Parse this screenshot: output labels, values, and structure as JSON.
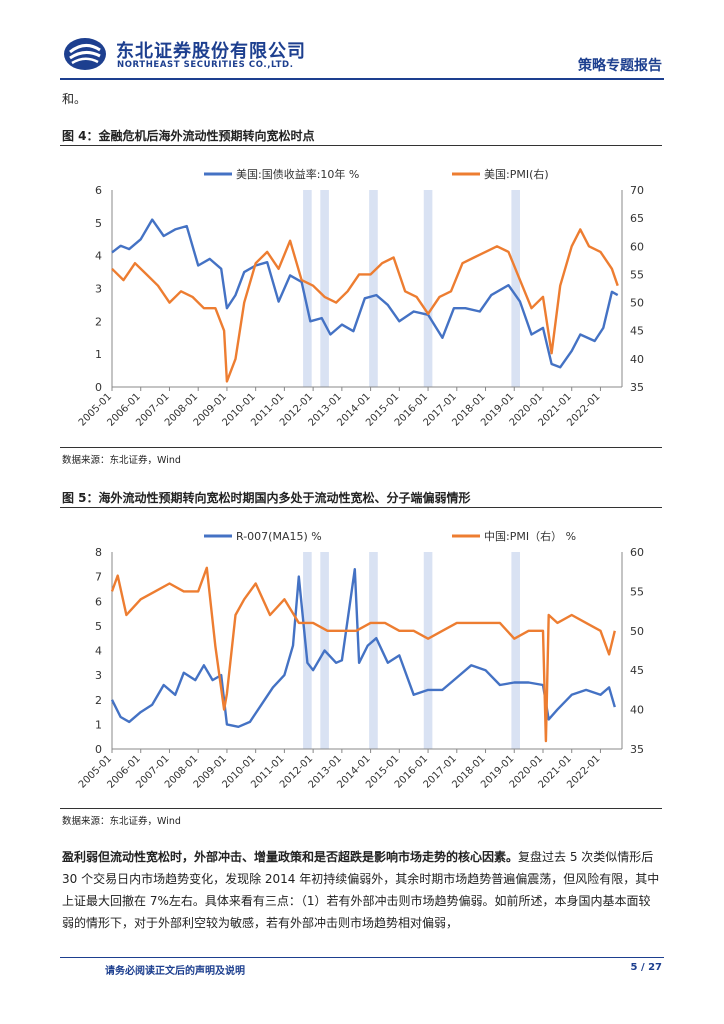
{
  "header": {
    "company_cn": "东北证券股份有限公司",
    "company_en": "NORTHEAST SECURITIES CO.,LTD.",
    "report_type": "策略专题报告"
  },
  "top_fragment": "和。",
  "figures": [
    {
      "title": "图 4：金融危机后海外流动性预期转向宽松时点",
      "source": "数据来源：东北证券，Wind",
      "legend": [
        "美国:国债收益率:10年 %",
        "美国:PMI(右)"
      ]
    },
    {
      "title": "图 5：海外流动性预期转向宽松时期国内多处于流动性宽松、分子端偏弱情形",
      "source": "数据来源：东北证券，Wind",
      "legend": [
        "R-007(MA15) %",
        "中国:PMI（右） %"
      ]
    }
  ],
  "body": {
    "bold_lead": "盈利弱但流动性宽松时，外部冲击、增量政策和是否超跌是影响市场走势的核心因素。",
    "text": "复盘过去 5 次类似情形后 30 个交易日内市场趋势变化，发现除 2014 年初持续偏弱外，其余时期市场趋势普遍偏震荡，但风险有限，其中上证最大回撤在 7%左右。具体来看有三点：（1）若有外部冲击则市场趋势偏弱。如前所述，本身国内基本面较弱的情形下，对于外部利空较为敏感，若有外部冲击则市场趋势相对偏弱，"
  },
  "footer": {
    "disclaimer": "请务必阅读正文后的声明及说明",
    "page": "5 / 27"
  },
  "chart_data": [
    {
      "type": "line",
      "title": "",
      "x_ticks": [
        "2005-01",
        "2006-01",
        "2007-01",
        "2008-01",
        "2009-01",
        "2010-01",
        "2011-01",
        "2012-01",
        "2013-01",
        "2014-01",
        "2015-01",
        "2016-01",
        "2017-01",
        "2018-01",
        "2019-01",
        "2020-01",
        "2021-01",
        "2022-01"
      ],
      "ylim_left": [
        0,
        6
      ],
      "yticks_left": [
        0,
        1,
        2,
        3,
        4,
        5,
        6
      ],
      "ylim_right": [
        35,
        70
      ],
      "yticks_right": [
        35,
        40,
        45,
        50,
        55,
        60,
        65,
        70
      ],
      "colors": {
        "left": "#4472c4",
        "right": "#ed7d31",
        "shade": "#d9e2f3"
      },
      "shaded_periods": [
        [
          2011.65,
          2011.95
        ],
        [
          2012.25,
          2012.55
        ],
        [
          2013.95,
          2014.25
        ],
        [
          2015.85,
          2016.15
        ],
        [
          2018.9,
          2019.2
        ]
      ],
      "series": [
        {
          "name": "美国:国债收益率:10年 %",
          "axis": "left",
          "x": [
            2005.0,
            2005.3,
            2005.6,
            2006.0,
            2006.4,
            2006.8,
            2007.2,
            2007.6,
            2008.0,
            2008.4,
            2008.8,
            2009.0,
            2009.3,
            2009.6,
            2010.0,
            2010.4,
            2010.8,
            2011.2,
            2011.6,
            2011.9,
            2012.3,
            2012.6,
            2013.0,
            2013.4,
            2013.8,
            2014.2,
            2014.6,
            2015.0,
            2015.5,
            2016.0,
            2016.5,
            2016.9,
            2017.3,
            2017.8,
            2018.2,
            2018.8,
            2019.2,
            2019.6,
            2020.0,
            2020.3,
            2020.6,
            2021.0,
            2021.3,
            2021.8,
            2022.1,
            2022.4,
            2022.6
          ],
          "y": [
            4.1,
            4.3,
            4.2,
            4.5,
            5.1,
            4.6,
            4.8,
            4.9,
            3.7,
            3.9,
            3.6,
            2.4,
            2.8,
            3.5,
            3.7,
            3.8,
            2.6,
            3.4,
            3.2,
            2.0,
            2.1,
            1.6,
            1.9,
            1.7,
            2.7,
            2.8,
            2.5,
            2.0,
            2.3,
            2.2,
            1.5,
            2.4,
            2.4,
            2.3,
            2.8,
            3.1,
            2.6,
            1.6,
            1.8,
            0.7,
            0.6,
            1.1,
            1.6,
            1.4,
            1.8,
            2.9,
            2.8
          ]
        },
        {
          "name": "美国:PMI(右)",
          "axis": "right",
          "x": [
            2005.0,
            2005.4,
            2005.8,
            2006.2,
            2006.6,
            2007.0,
            2007.4,
            2007.8,
            2008.2,
            2008.6,
            2008.9,
            2009.0,
            2009.3,
            2009.6,
            2010.0,
            2010.4,
            2010.8,
            2011.2,
            2011.6,
            2012.0,
            2012.4,
            2012.8,
            2013.2,
            2013.6,
            2014.0,
            2014.4,
            2014.8,
            2015.2,
            2015.6,
            2016.0,
            2016.4,
            2016.8,
            2017.2,
            2017.6,
            2018.0,
            2018.4,
            2018.8,
            2019.2,
            2019.6,
            2020.0,
            2020.3,
            2020.6,
            2021.0,
            2021.3,
            2021.6,
            2022.0,
            2022.4,
            2022.6
          ],
          "y": [
            56,
            54,
            57,
            55,
            53,
            50,
            52,
            51,
            49,
            49,
            45,
            36,
            40,
            50,
            57,
            59,
            56,
            61,
            54,
            53,
            51,
            50,
            52,
            55,
            55,
            57,
            58,
            52,
            51,
            48,
            51,
            52,
            57,
            58,
            59,
            60,
            59,
            54,
            49,
            51,
            41,
            53,
            60,
            63,
            60,
            59,
            56,
            53
          ]
        }
      ]
    },
    {
      "type": "line",
      "title": "",
      "x_ticks": [
        "2005-01",
        "2006-01",
        "2007-01",
        "2008-01",
        "2009-01",
        "2010-01",
        "2011-01",
        "2012-01",
        "2013-01",
        "2014-01",
        "2015-01",
        "2016-01",
        "2017-01",
        "2018-01",
        "2019-01",
        "2020-01",
        "2021-01",
        "2022-01"
      ],
      "ylim_left": [
        0,
        8
      ],
      "yticks_left": [
        0,
        1,
        2,
        3,
        4,
        5,
        6,
        7,
        8
      ],
      "ylim_right": [
        35,
        60
      ],
      "yticks_right": [
        35,
        40,
        45,
        50,
        55,
        60
      ],
      "colors": {
        "left": "#4472c4",
        "right": "#ed7d31",
        "shade": "#d9e2f3"
      },
      "shaded_periods": [
        [
          2011.65,
          2011.95
        ],
        [
          2012.25,
          2012.55
        ],
        [
          2013.95,
          2014.25
        ],
        [
          2015.85,
          2016.15
        ],
        [
          2018.9,
          2019.2
        ]
      ],
      "series": [
        {
          "name": "R-007(MA15) %",
          "axis": "left",
          "x": [
            2005.0,
            2005.3,
            2005.6,
            2006.0,
            2006.4,
            2006.8,
            2007.2,
            2007.5,
            2007.9,
            2008.2,
            2008.5,
            2008.8,
            2009.0,
            2009.4,
            2009.8,
            2010.2,
            2010.6,
            2011.0,
            2011.3,
            2011.5,
            2011.8,
            2012.0,
            2012.4,
            2012.8,
            2013.0,
            2013.45,
            2013.6,
            2013.9,
            2014.2,
            2014.6,
            2015.0,
            2015.5,
            2016.0,
            2016.5,
            2017.0,
            2017.5,
            2018.0,
            2018.5,
            2019.0,
            2019.5,
            2020.0,
            2020.2,
            2020.5,
            2021.0,
            2021.5,
            2022.0,
            2022.3,
            2022.5
          ],
          "y": [
            2.0,
            1.3,
            1.1,
            1.5,
            1.8,
            2.6,
            2.2,
            3.1,
            2.8,
            3.4,
            2.8,
            3.0,
            1.0,
            0.9,
            1.1,
            1.8,
            2.5,
            3.0,
            4.2,
            7.0,
            3.5,
            3.2,
            4.0,
            3.5,
            3.6,
            7.3,
            3.5,
            4.2,
            4.5,
            3.5,
            3.8,
            2.2,
            2.4,
            2.4,
            2.9,
            3.4,
            3.2,
            2.6,
            2.7,
            2.7,
            2.6,
            1.2,
            1.6,
            2.2,
            2.4,
            2.2,
            2.5,
            1.7
          ]
        },
        {
          "name": "中国:PMI（右） %",
          "axis": "right",
          "x": [
            2005.0,
            2005.2,
            2005.5,
            2006.0,
            2006.5,
            2007.0,
            2007.5,
            2008.0,
            2008.3,
            2008.6,
            2008.9,
            2009.0,
            2009.3,
            2009.6,
            2010.0,
            2010.5,
            2011.0,
            2011.5,
            2012.0,
            2012.5,
            2013.0,
            2013.5,
            2014.0,
            2014.5,
            2015.0,
            2015.5,
            2016.0,
            2016.5,
            2017.0,
            2017.5,
            2018.0,
            2018.5,
            2019.0,
            2019.5,
            2020.0,
            2020.1,
            2020.2,
            2020.5,
            2021.0,
            2021.5,
            2022.0,
            2022.3,
            2022.5
          ],
          "y": [
            55,
            57,
            52,
            54,
            55,
            56,
            55,
            55,
            58,
            48,
            40,
            42,
            52,
            54,
            56,
            52,
            54,
            51,
            51,
            50,
            50,
            50,
            51,
            51,
            50,
            50,
            49,
            50,
            51,
            51,
            51,
            51,
            49,
            50,
            50,
            36,
            52,
            51,
            52,
            51,
            50,
            47,
            50
          ]
        }
      ]
    }
  ]
}
